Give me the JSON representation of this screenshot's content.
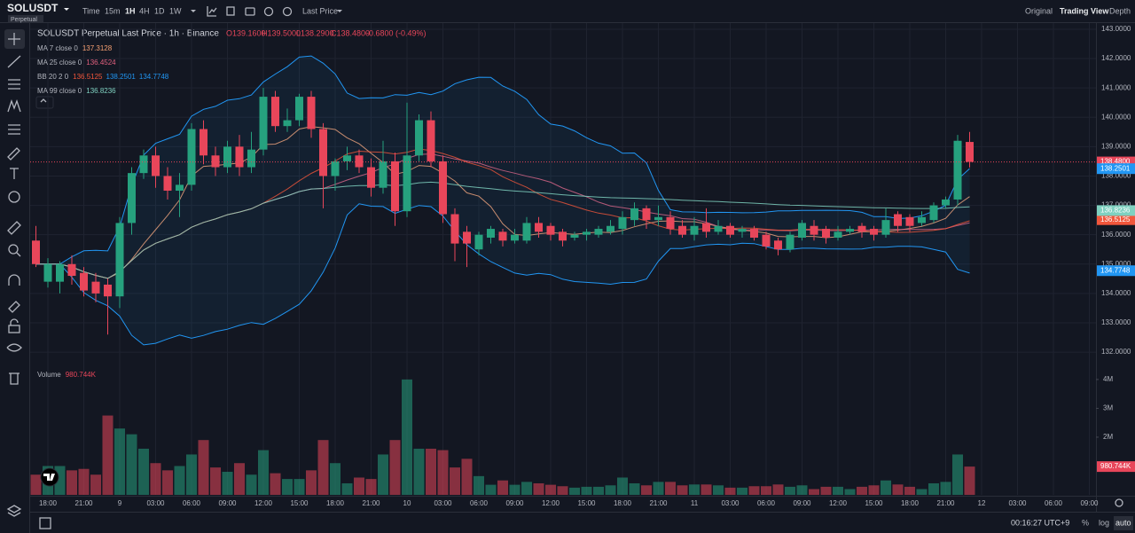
{
  "toolbar": {
    "symbol": "SOLUSDT",
    "badge": "Perpetual",
    "intervals": [
      "Time",
      "15m",
      "1H",
      "4H",
      "1D",
      "1W"
    ],
    "price_type": "Last Price",
    "views": [
      "Original",
      "Trading View",
      "Depth"
    ]
  },
  "status_bar": {
    "clock": "00:16:27 UTC+9",
    "options": [
      "%",
      "log",
      "auto"
    ]
  },
  "chart_data": {
    "type": "candlestick",
    "title": "SOLUSDT Perpetual Last Price · 1h · Binance",
    "ohlc_legend": [
      "O139.1600",
      "H139.5000",
      "L138.2900",
      "C138.4800",
      "-0.6800 (-0.49%)"
    ],
    "up_color": "#26a17e",
    "down_color": "#e8465a",
    "open": [
      135.8,
      134.4,
      134.4,
      135.0,
      134.7,
      134.4,
      134.3,
      133.9,
      136.4,
      138.1,
      138.7,
      138.0,
      137.5,
      137.7,
      139.6,
      138.7,
      138.3,
      139.0,
      138.3,
      138.9,
      140.7,
      139.7,
      139.9,
      140.7,
      139.6,
      138.0,
      138.5,
      138.7,
      138.3,
      137.6,
      138.5,
      136.8,
      138.7,
      139.9,
      138.5,
      136.7,
      136.1,
      135.5,
      135.9,
      136.1,
      135.8,
      135.8,
      136.4,
      136.3,
      136.1,
      135.9,
      136.0,
      136.0,
      136.1,
      136.2,
      136.5,
      136.9,
      136.5,
      136.6,
      136.3,
      136.0,
      136.4,
      136.1,
      136.3,
      136.1,
      136.2,
      136.0,
      135.8,
      135.5,
      135.9,
      136.3,
      136.2,
      135.9,
      136.1,
      136.3,
      136.2,
      136.0,
      136.7,
      136.6,
      136.4,
      136.5,
      137.0,
      137.2,
      139.16
    ],
    "high": [
      136.3,
      135.2,
      135.1,
      135.3,
      134.9,
      134.7,
      134.5,
      136.6,
      138.3,
      138.9,
      139.0,
      138.3,
      138.1,
      139.8,
      139.9,
      139.0,
      139.2,
      139.4,
      139.5,
      141.0,
      140.9,
      140.3,
      140.8,
      140.9,
      139.8,
      138.6,
      139.0,
      138.9,
      138.6,
      139.2,
      138.8,
      140.5,
      140.1,
      140.2,
      138.7,
      136.9,
      136.3,
      136.1,
      136.3,
      136.2,
      136.2,
      136.6,
      136.6,
      136.4,
      136.2,
      136.1,
      136.2,
      136.3,
      136.5,
      136.8,
      137.1,
      137.0,
      137.0,
      136.8,
      136.5,
      136.6,
      136.9,
      136.5,
      136.4,
      136.3,
      136.3,
      136.1,
      135.9,
      136.1,
      136.5,
      136.5,
      136.3,
      136.3,
      136.3,
      136.4,
      136.3,
      136.9,
      136.8,
      136.7,
      136.8,
      137.1,
      137.3,
      139.4,
      139.5
    ],
    "low": [
      134.9,
      134.2,
      134.0,
      134.3,
      133.9,
      133.7,
      132.6,
      133.5,
      136.0,
      137.9,
      137.6,
      137.2,
      136.6,
      137.5,
      138.4,
      138.0,
      138.1,
      138.0,
      138.1,
      138.7,
      139.5,
      139.5,
      139.7,
      139.3,
      136.9,
      137.5,
      138.2,
      138.1,
      137.3,
      137.4,
      136.3,
      136.6,
      138.5,
      138.3,
      136.4,
      135.1,
      134.9,
      135.3,
      135.7,
      135.6,
      135.7,
      135.7,
      135.9,
      135.8,
      135.6,
      135.8,
      135.8,
      135.9,
      136.0,
      136.0,
      136.3,
      136.2,
      136.3,
      136.0,
      135.9,
      135.8,
      135.9,
      136.0,
      135.9,
      135.9,
      135.8,
      135.5,
      135.3,
      135.4,
      135.8,
      135.8,
      135.7,
      135.8,
      136.0,
      135.9,
      135.8,
      135.9,
      136.1,
      136.1,
      136.3,
      136.4,
      136.9,
      137.0,
      138.29
    ],
    "close": [
      135.0,
      135.0,
      135.0,
      134.6,
      134.1,
      134.0,
      133.9,
      136.4,
      138.1,
      138.7,
      138.0,
      137.5,
      137.7,
      139.6,
      138.7,
      138.3,
      139.0,
      138.3,
      138.9,
      140.7,
      139.7,
      139.9,
      140.7,
      139.6,
      138.0,
      138.5,
      138.7,
      138.3,
      137.6,
      138.5,
      136.8,
      138.7,
      139.9,
      138.5,
      136.7,
      135.7,
      135.7,
      136.0,
      136.2,
      135.8,
      136.0,
      136.4,
      136.1,
      136.0,
      135.8,
      136.0,
      136.1,
      136.2,
      136.3,
      136.6,
      136.9,
      136.5,
      136.6,
      136.2,
      136.0,
      136.3,
      136.1,
      136.3,
      136.0,
      136.2,
      135.9,
      135.6,
      135.5,
      136.0,
      136.4,
      136.0,
      135.9,
      136.1,
      136.2,
      136.1,
      136.0,
      136.5,
      136.3,
      136.3,
      136.6,
      137.0,
      137.2,
      139.2,
      138.48
    ],
    "volume": [
      700000,
      1000000,
      1000000,
      850000,
      900000,
      700000,
      2750000,
      2300000,
      2100000,
      1600000,
      1100000,
      850000,
      1000000,
      1400000,
      1900000,
      950000,
      800000,
      1100000,
      700000,
      1550000,
      750000,
      550000,
      550000,
      850000,
      1900000,
      1100000,
      400000,
      600000,
      550000,
      1400000,
      1900000,
      4000000,
      1600000,
      1600000,
      1550000,
      950000,
      1250000,
      650000,
      350000,
      500000,
      350000,
      450000,
      400000,
      350000,
      300000,
      250000,
      280000,
      280000,
      330000,
      600000,
      400000,
      330000,
      450000,
      450000,
      330000,
      360000,
      360000,
      330000,
      250000,
      250000,
      300000,
      300000,
      360000,
      280000,
      330000,
      200000,
      280000,
      280000,
      200000,
      280000,
      330000,
      500000,
      360000,
      280000,
      200000,
      400000,
      450000,
      1400000,
      980744
    ],
    "ylim": [
      131.61,
      143.24
    ],
    "yticks": [
      {
        "value": 143,
        "label": "143.0000"
      },
      {
        "value": 142,
        "label": "142.0000"
      },
      {
        "value": 141,
        "label": "141.0000"
      },
      {
        "value": 140,
        "label": "140.0000"
      },
      {
        "value": 139,
        "label": "139.0000"
      },
      {
        "value": 138,
        "label": "138.0000"
      },
      {
        "value": 137,
        "label": "137.0000"
      },
      {
        "value": 136,
        "label": "136.0000"
      },
      {
        "value": 135,
        "label": "135.0000"
      },
      {
        "value": 134,
        "label": "134.0000"
      },
      {
        "value": 133,
        "label": "133.0000"
      },
      {
        "value": 132,
        "label": "132.0000"
      }
    ],
    "y2lim": [
      0,
      4550000
    ],
    "y2ticks": [
      {
        "value": 2000000,
        "label": "2M"
      },
      {
        "value": 3000000,
        "label": "3M"
      },
      {
        "value": 4000000,
        "label": "4M"
      }
    ],
    "time_labels": [
      "18:00",
      "21:00",
      "9",
      "03:00",
      "06:00",
      "09:00",
      "12:00",
      "15:00",
      "18:00",
      "21:00",
      "10",
      "03:00",
      "06:00",
      "09:00",
      "12:00",
      "15:00",
      "18:00",
      "21:00",
      "11",
      "03:00",
      "06:00",
      "09:00",
      "12:00",
      "15:00",
      "18:00",
      "21:00",
      "12",
      "03:00",
      "06:00",
      "09:00"
    ],
    "grid": true,
    "last_price": {
      "value": 138.48,
      "label": "138.4800"
    },
    "volume_title": "Volume",
    "volume_last": {
      "value": 980744,
      "label": "980.744K"
    },
    "indicators": [
      {
        "name": "MA 7 close 0",
        "kind": "ma",
        "color": "#f7a072",
        "values": [
          137.3128
        ],
        "tag": false
      },
      {
        "name": "MA 25 close 0",
        "kind": "ma",
        "color": "#e0607e",
        "values": [
          136.4524
        ],
        "tag": false
      },
      {
        "name": "BB 20 2 0",
        "kind": "bb",
        "color": "#f2563b",
        "band_color": "#2196f3",
        "values": [
          136.5125,
          138.2501,
          134.7748
        ],
        "tag": true
      },
      {
        "name": "MA 99 close 0",
        "kind": "ma",
        "color": "#7fd1c0",
        "values": [
          136.8236
        ],
        "tag": true
      }
    ]
  }
}
